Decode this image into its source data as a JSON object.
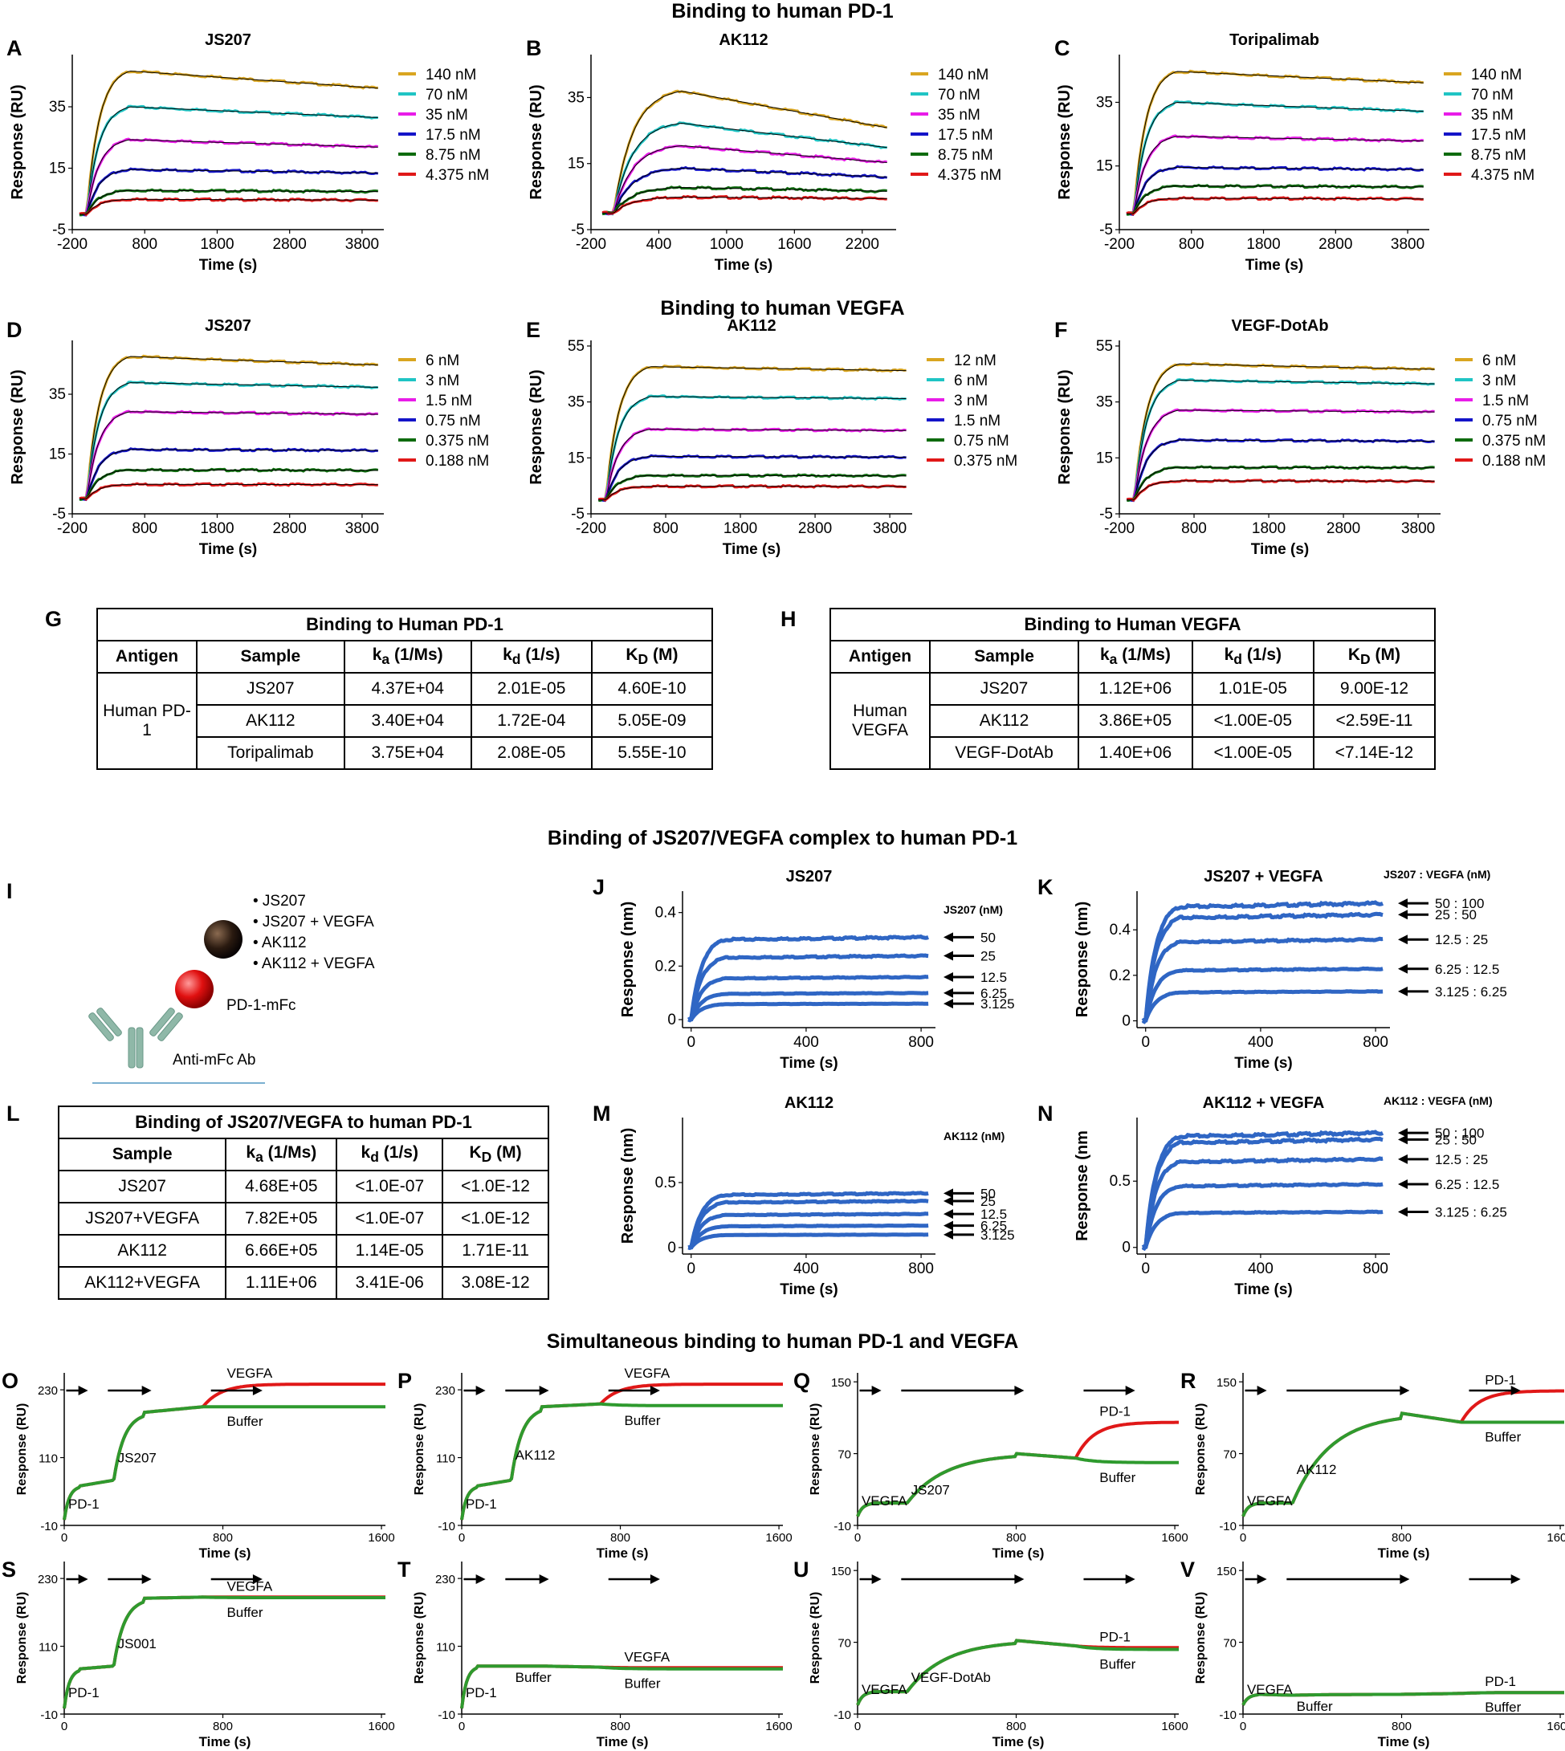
{
  "section_titles": {
    "pd1": "Binding to human PD-1",
    "vegfa": "Binding to human VEGFA",
    "complex": "Binding of JS207/VEGFA complex to human PD-1",
    "simul": "Simultaneous binding to human PD-1 and VEGFA"
  },
  "colors": {
    "c1": "#d9a520",
    "c2": "#1fc4c4",
    "c3": "#e81ce8",
    "c4": "#1414c8",
    "c5": "#0e6b0e",
    "c6": "#e01818",
    "blue": "#2f66c4",
    "red": "#e01818",
    "green": "#2e9a2e"
  },
  "chart_data": [
    {
      "id": "A",
      "type": "line",
      "title": "JS207",
      "xlabel": "Time (s)",
      "ylabel": "Response (RU)",
      "xlim": [
        -200,
        4100
      ],
      "ylim": [
        -5,
        52
      ],
      "xticks": [
        "-200",
        "800",
        "1800",
        "2800",
        "3800"
      ],
      "yticks": [
        "-5",
        "15",
        "35"
      ],
      "legend": [
        "140 nM",
        "70 nM",
        "35 nM",
        "17.5 nM",
        "8.75 nM",
        "4.375 nM"
      ],
      "plateaus": [
        48,
        36,
        25,
        15,
        8,
        5
      ],
      "decay": [
        0.12,
        0.1,
        0.1,
        0.08,
        0.05,
        0.05
      ],
      "t_end": 600
    },
    {
      "id": "B",
      "type": "line",
      "title": "AK112",
      "xlabel": "Time (s)",
      "ylabel": "Response (RU)",
      "xlim": [
        -200,
        2500
      ],
      "ylim": [
        -5,
        48
      ],
      "xticks": [
        "-200",
        "400",
        "1000",
        "1600",
        "2200"
      ],
      "yticks": [
        "-5",
        "15",
        "35"
      ],
      "legend": [
        "140 nM",
        "70 nM",
        "35 nM",
        "17.5 nM",
        "8.75 nM",
        "4.375 nM"
      ],
      "plateaus": [
        38,
        28,
        21,
        14,
        8,
        5
      ],
      "decay": [
        0.3,
        0.27,
        0.25,
        0.2,
        0.15,
        0.1
      ],
      "t_end": 600
    },
    {
      "id": "C",
      "type": "line",
      "title": "Toripalimab",
      "xlabel": "Time (s)",
      "ylabel": "Response (RU)",
      "xlim": [
        -200,
        4100
      ],
      "ylim": [
        -5,
        50
      ],
      "xticks": [
        "-200",
        "800",
        "1800",
        "2800",
        "3800"
      ],
      "yticks": [
        "-5",
        "15",
        "35"
      ],
      "legend": [
        "140 nM",
        "70 nM",
        "35 nM",
        "17.5 nM",
        "8.75 nM",
        "4.375 nM"
      ],
      "plateaus": [
        46,
        36,
        25,
        15,
        9,
        5
      ],
      "decay": [
        0.08,
        0.08,
        0.06,
        0.05,
        0.04,
        0.04
      ],
      "t_end": 600
    },
    {
      "id": "D",
      "type": "line",
      "title": "JS207",
      "xlabel": "Time (s)",
      "ylabel": "Response (RU)",
      "xlim": [
        -200,
        4100
      ],
      "ylim": [
        -5,
        53
      ],
      "xticks": [
        "-200",
        "800",
        "1800",
        "2800",
        "3800"
      ],
      "yticks": [
        "-5",
        "15",
        "35"
      ],
      "legend": [
        "6 nM",
        "3 nM",
        "1.5 nM",
        "0.75 nM",
        "0.375 nM",
        "0.188 nM"
      ],
      "plateaus": [
        49,
        40,
        30,
        17,
        10,
        5
      ],
      "decay": [
        0.06,
        0.04,
        0.03,
        0.02,
        0.02,
        0.02
      ],
      "t_end": 600
    },
    {
      "id": "E",
      "type": "line",
      "title": "AK112",
      "xlabel": "Time (s)",
      "ylabel": "Response (RU)",
      "xlim": [
        -200,
        4100
      ],
      "ylim": [
        -5,
        57
      ],
      "xticks": [
        "-200",
        "800",
        "1800",
        "2800",
        "3800"
      ],
      "yticks": [
        "-5",
        "15",
        "35",
        "55"
      ],
      "legend": [
        "12 nM",
        "6 nM",
        "3 nM",
        "1.5 nM",
        "0.75 nM",
        "0.375 nM"
      ],
      "plateaus": [
        49,
        38,
        26,
        16,
        9,
        5
      ],
      "decay": [
        0.03,
        0.02,
        0.02,
        0.02,
        0.02,
        0.02
      ],
      "t_end": 600
    },
    {
      "id": "F",
      "type": "line",
      "title": "VEGF-DotAb",
      "xlabel": "Time (s)",
      "ylabel": "Response (RU)",
      "xlim": [
        -200,
        4100
      ],
      "ylim": [
        -5,
        57
      ],
      "xticks": [
        "-200",
        "800",
        "1800",
        "2800",
        "3800"
      ],
      "yticks": [
        "-5",
        "15",
        "35",
        "55"
      ],
      "legend": [
        "6 nM",
        "3 nM",
        "1.5 nM",
        "0.75 nM",
        "0.375 nM",
        "0.188 nM"
      ],
      "plateaus": [
        50,
        44,
        33,
        22,
        12,
        7
      ],
      "decay": [
        0.04,
        0.03,
        0.02,
        0.02,
        0.02,
        0.02
      ],
      "t_end": 600
    },
    {
      "id": "J",
      "type": "line",
      "title": "JS207",
      "xlabel": "Time (s)",
      "ylabel": "Response (nm)",
      "xlim": [
        -30,
        850
      ],
      "ylim": [
        -0.03,
        0.48
      ],
      "xticks": [
        "0",
        "400",
        "800"
      ],
      "yticks": [
        "0",
        "0.2",
        "0.4"
      ],
      "legend_title": "JS207 (nM)",
      "arrows": [
        "50",
        "25",
        "12.5",
        "6.25",
        "3.125"
      ],
      "plateaus": [
        0.31,
        0.24,
        0.16,
        0.1,
        0.06
      ],
      "t_end": 120
    },
    {
      "id": "K",
      "type": "line",
      "title": "JS207 + VEGFA",
      "xlabel": "Time (s)",
      "ylabel": "Response (nm)",
      "xlim": [
        -30,
        850
      ],
      "ylim": [
        -0.03,
        0.57
      ],
      "xticks": [
        "0",
        "400",
        "800"
      ],
      "yticks": [
        "0",
        "0.2",
        "0.4"
      ],
      "legend_title": "JS207 : VEGFA (nM)",
      "arrows": [
        "50 : 100",
        "25 : 50",
        "12.5 : 25",
        "6.25 : 12.5",
        "3.125 : 6.25"
      ],
      "plateaus": [
        0.52,
        0.47,
        0.36,
        0.23,
        0.13
      ],
      "t_end": 120
    },
    {
      "id": "M",
      "type": "line",
      "title": "AK112",
      "xlabel": "Time (s)",
      "ylabel": "Response (nm)",
      "xlim": [
        -30,
        850
      ],
      "ylim": [
        -0.05,
        1.0
      ],
      "xticks": [
        "0",
        "400",
        "800"
      ],
      "yticks": [
        "0",
        "0.5"
      ],
      "legend_title": "AK112 (nM)",
      "arrows": [
        "50",
        "25",
        "12.5",
        "6.25",
        "3.125"
      ],
      "plateaus": [
        0.42,
        0.36,
        0.26,
        0.17,
        0.1
      ],
      "t_end": 120
    },
    {
      "id": "N",
      "type": "line",
      "title": "AK112 + VEGFA",
      "xlabel": "Time (s)",
      "ylabel": "Response (nm",
      "xlim": [
        -30,
        850
      ],
      "ylim": [
        -0.05,
        0.98
      ],
      "xticks": [
        "0",
        "400",
        "800"
      ],
      "yticks": [
        "0",
        "0.5"
      ],
      "legend_title": "AK112 : VEGFA (nM)",
      "arrows": [
        "50 : 100",
        "25 : 50",
        "12.5 : 25",
        "6.25 : 12.5",
        "3.125 : 6.25"
      ],
      "plateaus": [
        0.87,
        0.82,
        0.67,
        0.48,
        0.27
      ],
      "t_end": 120
    },
    {
      "id": "O",
      "type": "line",
      "xlabel": "Time (s)",
      "ylabel": "Response (RU)",
      "xlim": [
        0,
        1620
      ],
      "ylim": [
        -10,
        260
      ],
      "xticks": [
        "0",
        "800",
        "1600"
      ],
      "yticks": [
        "-10",
        "110",
        "230"
      ],
      "stages": [
        {
          "t": 0,
          "y": 0
        },
        {
          "t": 80,
          "y": 60
        },
        {
          "t": 250,
          "y": 70
        },
        {
          "t": 400,
          "y": 190
        },
        {
          "t": 700,
          "y": 200
        }
      ],
      "final": {
        "red": 240,
        "green": 200
      },
      "t3": 700,
      "labels": {
        "s1": "PD-1",
        "s2": "JS207",
        "red": "VEGFA",
        "green": "Buffer"
      }
    },
    {
      "id": "P",
      "type": "line",
      "xlabel": "Time (s)",
      "ylabel": "Response (RU)",
      "xlim": [
        0,
        1620
      ],
      "ylim": [
        -10,
        260
      ],
      "xticks": [
        "0",
        "800",
        "1600"
      ],
      "yticks": [
        "-10",
        "110",
        "230"
      ],
      "stages": [
        {
          "t": 0,
          "y": 0
        },
        {
          "t": 80,
          "y": 60
        },
        {
          "t": 250,
          "y": 70
        },
        {
          "t": 400,
          "y": 200
        },
        {
          "t": 700,
          "y": 205
        }
      ],
      "final": {
        "red": 240,
        "green": 202
      },
      "t3": 700,
      "labels": {
        "s1": "PD-1",
        "s2": "AK112",
        "red": "VEGFA",
        "green": "Buffer"
      }
    },
    {
      "id": "Q",
      "type": "line",
      "xlabel": "Time (s)",
      "ylabel": "Response (RU)",
      "xlim": [
        0,
        1620
      ],
      "ylim": [
        -10,
        160
      ],
      "xticks": [
        "0",
        "800",
        "1600"
      ],
      "yticks": [
        "-10",
        "70",
        "150"
      ],
      "stages": [
        {
          "t": 0,
          "y": 0
        },
        {
          "t": 80,
          "y": 15
        },
        {
          "t": 250,
          "y": 15
        },
        {
          "t": 800,
          "y": 70
        },
        {
          "t": 1100,
          "y": 65
        }
      ],
      "final": {
        "red": 105,
        "green": 60
      },
      "t3": 1100,
      "labels": {
        "s1": "VEGFA",
        "s2": "JS207",
        "red": "PD-1",
        "green": "Buffer"
      }
    },
    {
      "id": "R",
      "type": "line",
      "xlabel": "Time (s)",
      "ylabel": "Response (RU)",
      "xlim": [
        0,
        1620
      ],
      "ylim": [
        -10,
        160
      ],
      "xticks": [
        "0",
        "800",
        "1600"
      ],
      "yticks": [
        "-10",
        "70",
        "150"
      ],
      "stages": [
        {
          "t": 0,
          "y": 0
        },
        {
          "t": 80,
          "y": 15
        },
        {
          "t": 250,
          "y": 15
        },
        {
          "t": 800,
          "y": 115
        },
        {
          "t": 1100,
          "y": 105
        }
      ],
      "final": {
        "red": 140,
        "green": 105
      },
      "t3": 1100,
      "labels": {
        "s1": "VEGFA",
        "s2": "AK112",
        "red": "PD-1",
        "green": "Buffer"
      }
    },
    {
      "id": "S",
      "type": "line",
      "xlabel": "Time (s)",
      "ylabel": "Response (RU)",
      "xlim": [
        0,
        1620
      ],
      "ylim": [
        -10,
        260
      ],
      "xticks": [
        "0",
        "800",
        "1600"
      ],
      "yticks": [
        "-10",
        "110",
        "230"
      ],
      "stages": [
        {
          "t": 0,
          "y": 0
        },
        {
          "t": 80,
          "y": 70
        },
        {
          "t": 250,
          "y": 75
        },
        {
          "t": 400,
          "y": 195
        },
        {
          "t": 700,
          "y": 197
        }
      ],
      "final": {
        "red": 197,
        "green": 196
      },
      "t3": 700,
      "labels": {
        "s1": "PD-1",
        "s2": "JS001",
        "red": "VEGFA",
        "green": "Buffer"
      }
    },
    {
      "id": "T",
      "type": "line",
      "xlabel": "Time (s)",
      "ylabel": "Response (RU)",
      "xlim": [
        0,
        1620
      ],
      "ylim": [
        -10,
        260
      ],
      "xticks": [
        "0",
        "800",
        "1600"
      ],
      "yticks": [
        "-10",
        "110",
        "230"
      ],
      "stages": [
        {
          "t": 0,
          "y": 0
        },
        {
          "t": 80,
          "y": 75
        },
        {
          "t": 250,
          "y": 75
        },
        {
          "t": 400,
          "y": 75
        },
        {
          "t": 700,
          "y": 73
        }
      ],
      "final": {
        "red": 72,
        "green": 70
      },
      "t3": 700,
      "labels": {
        "s1": "PD-1",
        "s2": "Buffer",
        "red": "VEGFA",
        "green": "Buffer"
      }
    },
    {
      "id": "U",
      "type": "line",
      "xlabel": "Time (s)",
      "ylabel": "Response (RU)",
      "xlim": [
        0,
        1620
      ],
      "ylim": [
        -10,
        160
      ],
      "xticks": [
        "0",
        "800",
        "1600"
      ],
      "yticks": [
        "-10",
        "70",
        "150"
      ],
      "stages": [
        {
          "t": 0,
          "y": 0
        },
        {
          "t": 80,
          "y": 15
        },
        {
          "t": 250,
          "y": 15
        },
        {
          "t": 800,
          "y": 72
        },
        {
          "t": 1100,
          "y": 66
        }
      ],
      "final": {
        "red": 64,
        "green": 62
      },
      "t3": 1100,
      "labels": {
        "s1": "VEGFA",
        "s2": "VEGF-DotAb",
        "red": "PD-1",
        "green": "Buffer"
      }
    },
    {
      "id": "V",
      "type": "line",
      "xlabel": "Time (s)",
      "ylabel": "Response (RU)",
      "xlim": [
        0,
        1620
      ],
      "ylim": [
        -10,
        160
      ],
      "xticks": [
        "0",
        "800",
        "1600"
      ],
      "yticks": [
        "-10",
        "70",
        "150"
      ],
      "stages": [
        {
          "t": 0,
          "y": 0
        },
        {
          "t": 80,
          "y": 12
        },
        {
          "t": 250,
          "y": 11
        },
        {
          "t": 800,
          "y": 12
        },
        {
          "t": 1100,
          "y": 13
        }
      ],
      "final": {
        "red": 14,
        "green": 14
      },
      "t3": 1100,
      "labels": {
        "s1": "VEGFA",
        "s2": "Buffer",
        "red": "PD-1",
        "green": "Buffer"
      }
    }
  ],
  "table_G": {
    "caption": "Binding to Human PD-1",
    "headers": [
      "Antigen",
      "Sample",
      "k_a (1/Ms)",
      "k_d (1/s)",
      "K_D (M)"
    ],
    "antigen": "Human PD-1",
    "rows": [
      [
        "JS207",
        "4.37E+04",
        "2.01E-05",
        "4.60E-10"
      ],
      [
        "AK112",
        "3.40E+04",
        "1.72E-04",
        "5.05E-09"
      ],
      [
        "Toripalimab",
        "3.75E+04",
        "2.08E-05",
        "5.55E-10"
      ]
    ]
  },
  "table_H": {
    "caption": "Binding to Human VEGFA",
    "headers": [
      "Antigen",
      "Sample",
      "k_a (1/Ms)",
      "k_d (1/s)",
      "K_D (M)"
    ],
    "antigen": "Human VEGFA",
    "rows": [
      [
        "JS207",
        "1.12E+06",
        "1.01E-05",
        "9.00E-12"
      ],
      [
        "AK112",
        "3.86E+05",
        "<1.00E-05",
        "<2.59E-11"
      ],
      [
        "VEGF-DotAb",
        "1.40E+06",
        "<1.00E-05",
        "<7.14E-12"
      ]
    ]
  },
  "table_L": {
    "caption": "Binding of JS207/VEGFA to human PD-1",
    "headers": [
      "Sample",
      "k_a (1/Ms)",
      "k_d (1/s)",
      "K_D (M)"
    ],
    "rows": [
      [
        "JS207",
        "4.68E+05",
        "<1.0E-07",
        "<1.0E-12"
      ],
      [
        "JS207+VEGFA",
        "7.82E+05",
        "<1.0E-07",
        "<1.0E-12"
      ],
      [
        "AK112",
        "6.66E+05",
        "1.14E-05",
        "1.71E-11"
      ],
      [
        "AK112+VEGFA",
        "1.11E+06",
        "3.41E-06",
        "3.08E-12"
      ]
    ]
  },
  "diagram_I": {
    "bullets": [
      "• JS207",
      "• JS207 + VEGFA",
      "• AK112",
      "• AK112 + VEGFA"
    ],
    "pd1": "PD-1-mFc",
    "ab": "Anti-mFc Ab"
  }
}
